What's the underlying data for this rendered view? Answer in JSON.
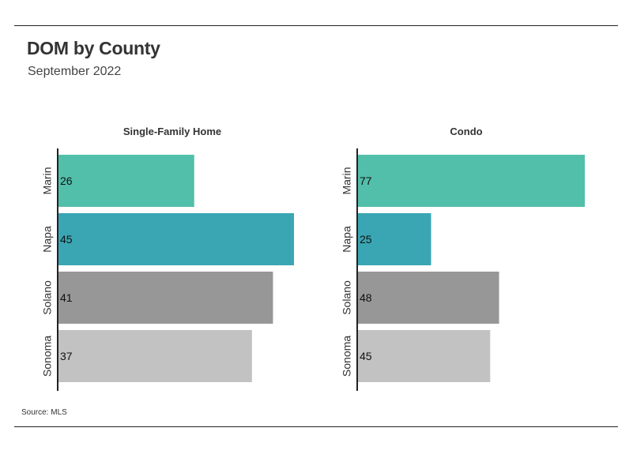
{
  "title": "DOM by County",
  "subtitle": "September 2022",
  "source": "Source:  MLS",
  "colors": {
    "Marin": "#52bfaa",
    "Napa": "#3aa6b3",
    "Solano": "#979797",
    "Sonoma": "#c2c2c2"
  },
  "chart_data": [
    {
      "type": "bar",
      "orientation": "horizontal",
      "title": "Single-Family Home",
      "categories": [
        "Marin",
        "Napa",
        "Solano",
        "Sonoma"
      ],
      "values": [
        26,
        45,
        41,
        37
      ],
      "xlim": [
        0,
        45
      ],
      "grid": false
    },
    {
      "type": "bar",
      "orientation": "horizontal",
      "title": "Condo",
      "categories": [
        "Marin",
        "Napa",
        "Solano",
        "Sonoma"
      ],
      "values": [
        77,
        25,
        48,
        45
      ],
      "xlim": [
        0,
        77
      ],
      "grid": false
    }
  ]
}
